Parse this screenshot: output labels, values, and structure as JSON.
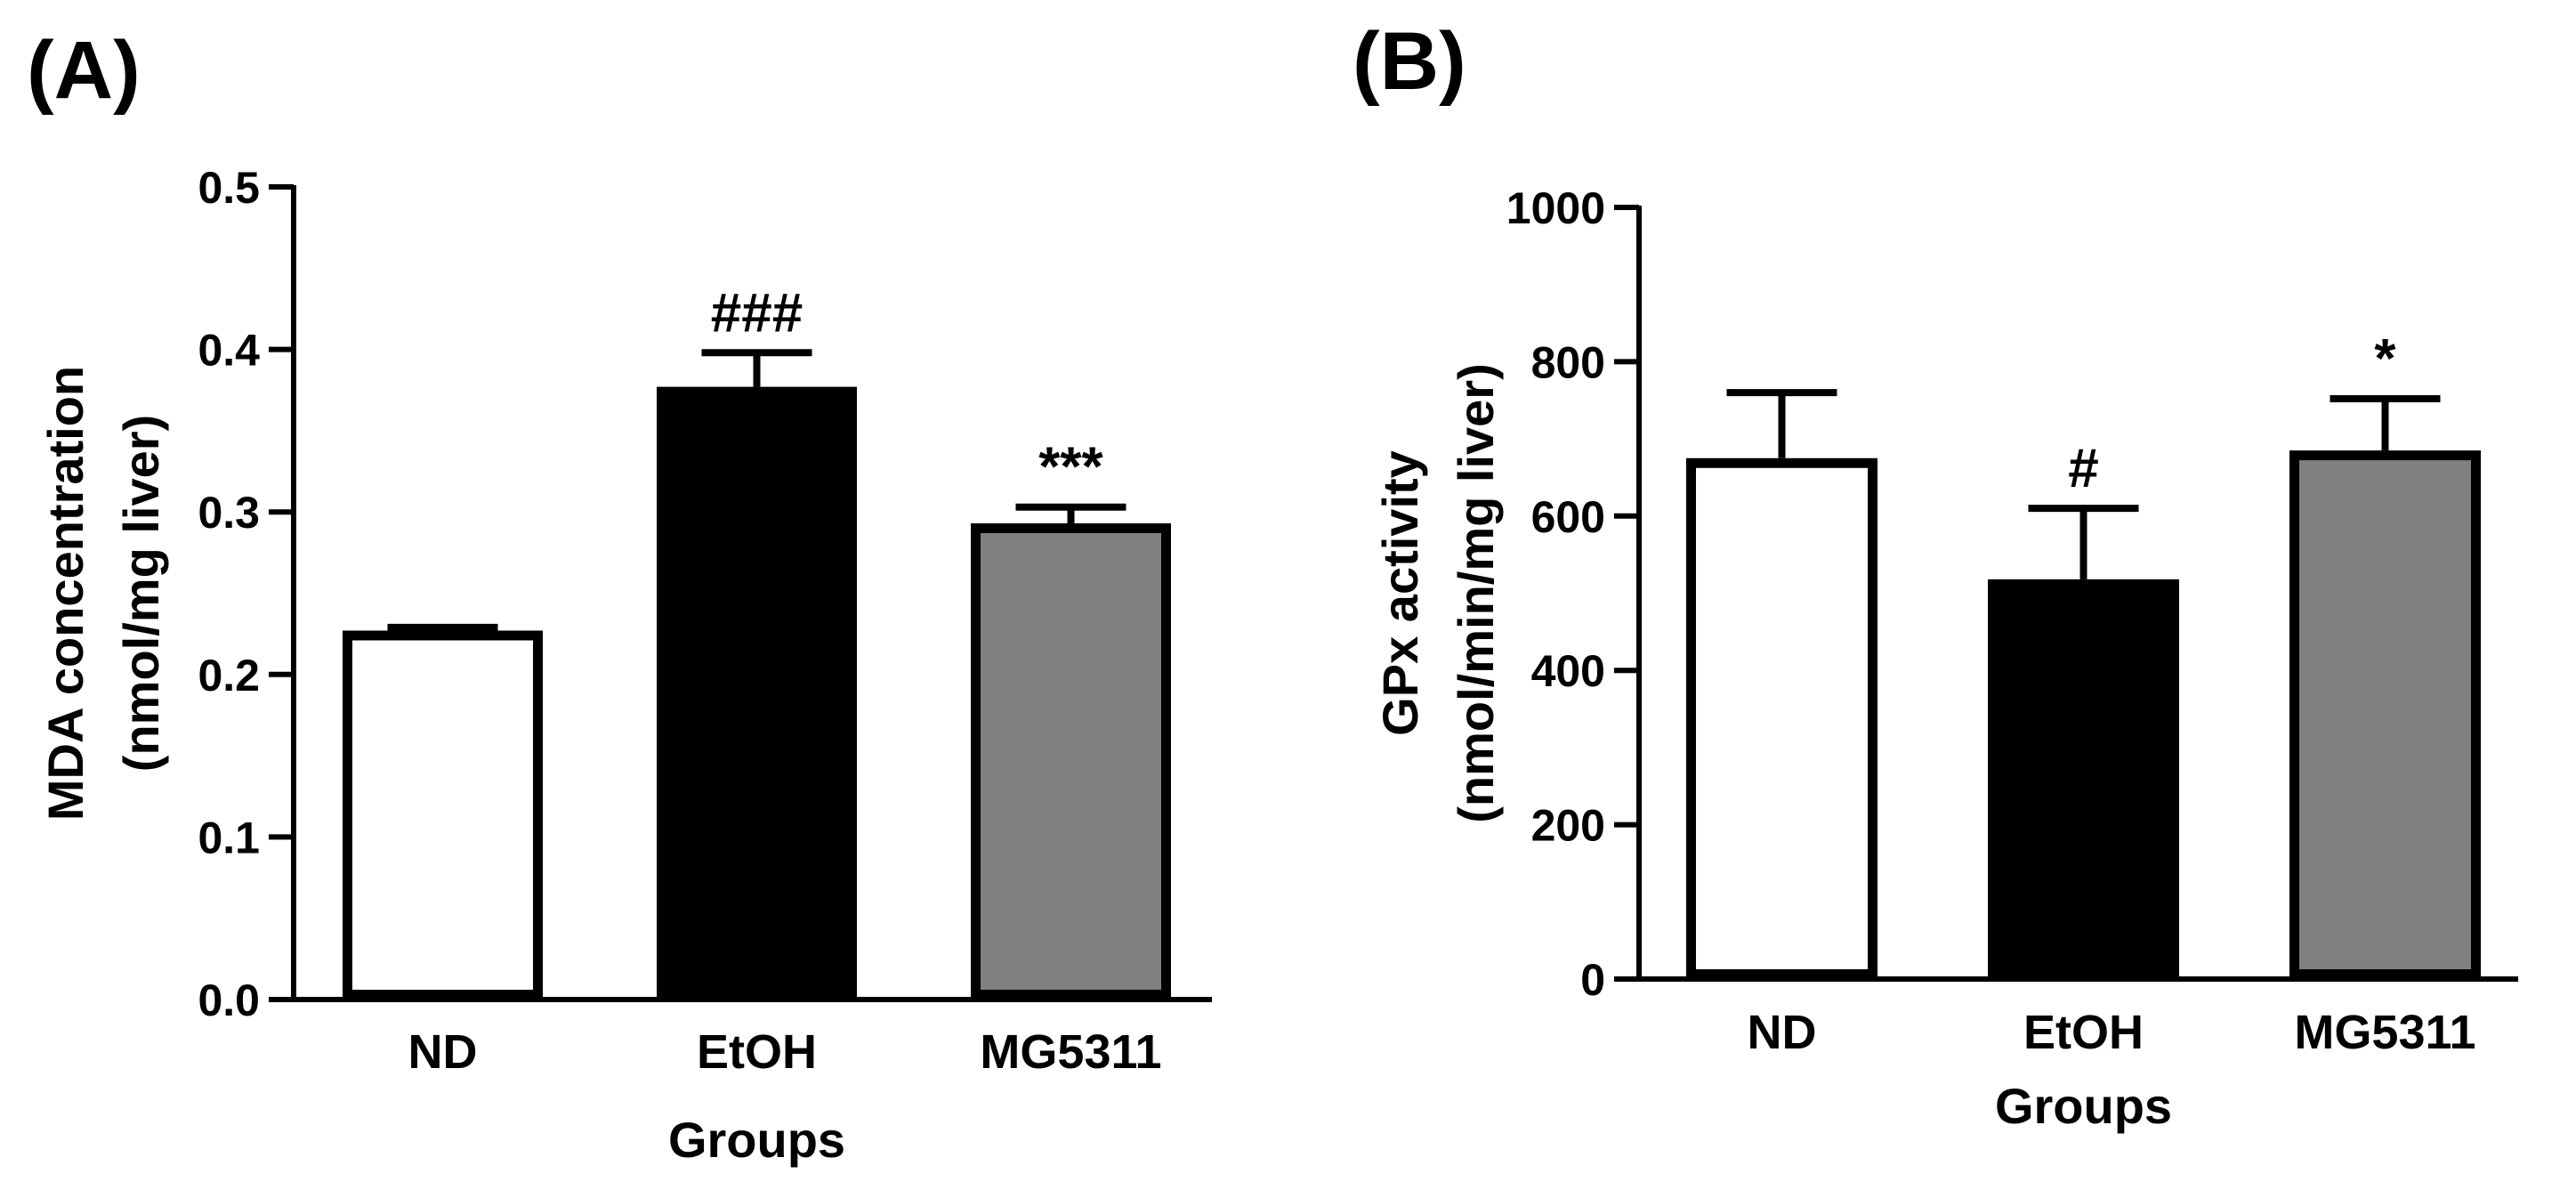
{
  "chart_data": [
    {
      "panel": "(A)",
      "type": "bar",
      "categories": [
        "ND",
        "EtOH",
        "MG5311"
      ],
      "values": [
        0.227,
        0.377,
        0.293
      ],
      "errors": [
        0.002,
        0.021,
        0.01
      ],
      "annotations": [
        "",
        "###",
        "***"
      ],
      "bar_colors": [
        "#ffffff",
        "#000000",
        "#808080"
      ],
      "ylabel_lines": [
        "MDA concentration",
        "(nmol/mg liver)"
      ],
      "xlabel": "Groups",
      "ylim": [
        0,
        0.5
      ],
      "yticks": [
        0.0,
        0.1,
        0.2,
        0.3,
        0.4,
        0.5
      ],
      "ytick_labels": [
        "0.0",
        "0.1",
        "0.2",
        "0.3",
        "0.4",
        "0.5"
      ]
    },
    {
      "panel": "(B)",
      "type": "bar",
      "categories": [
        "ND",
        "EtOH",
        "MG5311"
      ],
      "values": [
        675,
        518,
        685
      ],
      "errors": [
        85,
        92,
        67
      ],
      "annotations": [
        "",
        "#",
        "*"
      ],
      "bar_colors": [
        "#ffffff",
        "#000000",
        "#808080"
      ],
      "ylabel_lines": [
        "GPx activity",
        "(nmol/min/mg liver)"
      ],
      "xlabel": "Groups",
      "ylim": [
        0,
        1000
      ],
      "yticks": [
        0,
        200,
        400,
        600,
        800,
        1000
      ],
      "ytick_labels": [
        "0",
        "200",
        "400",
        "600",
        "800",
        "1000"
      ]
    }
  ]
}
